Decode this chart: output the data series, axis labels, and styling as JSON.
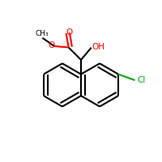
{
  "bg_color": "#ffffff",
  "bond_color": "#000000",
  "o_color": "#ff0000",
  "cl_color": "#00aa00",
  "lw": 1.5,
  "figsize": [
    2.0,
    2.0
  ],
  "dpi": 100,
  "xlim": [
    0,
    200
  ],
  "ylim": [
    0,
    200
  ]
}
